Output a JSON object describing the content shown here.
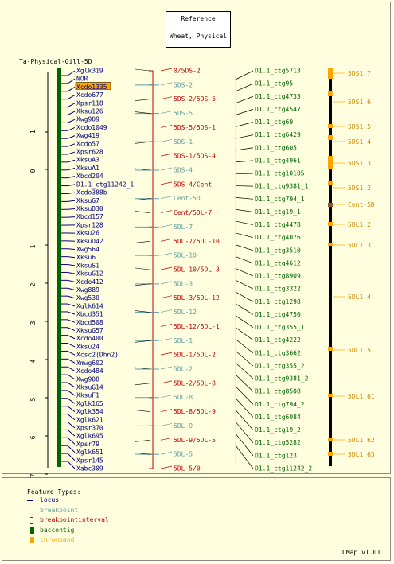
{
  "reference": {
    "title": "Reference",
    "subtitle": "Wheat, Physical"
  },
  "map1": {
    "name": "Ta-Physical-Gill-5D",
    "axis_ticks": [
      "-1",
      "0",
      "1",
      "2",
      "3",
      "4",
      "5",
      "6",
      "7"
    ],
    "loci": [
      "Xglk319",
      "NOR",
      "Xcdo1335",
      "Xcdo677",
      "Xpsr118",
      "Xksu126",
      "Xwg909",
      "Xcdo1049",
      "Xwg419",
      "Xcdo57",
      "Xpsr628",
      "XksuA3",
      "XksuA1",
      "Xbcd204",
      "D1.1_ctg11242_1",
      "Xcdo388b",
      "XksuG7",
      "XksuD30",
      "Xbcd157",
      "Xpsr128",
      "Xksu26",
      "XksuD42",
      "Xwg564",
      "Xksu6",
      "XksuS1",
      "XksuG12",
      "Xcdo412",
      "Xwg889",
      "Xwg530",
      "Xglk614",
      "Xbcd351",
      "Xbcd508",
      "XksuG57",
      "Xcdo400",
      "Xksu24",
      "Xcsc2(Dhn2)",
      "Xmwg602",
      "Xcdo484",
      "Xwg908",
      "XksuG14",
      "XksuF1",
      "Xglk165",
      "Xglk354",
      "Xglk621",
      "Xpsr370",
      "Xglk695",
      "Xpsr79",
      "Xglk651",
      "Xpsr145",
      "Xabc309"
    ],
    "highlighted_locus": "Xcdo1335"
  },
  "map2": {
    "labels": [
      {
        "text": "0/5DS-2",
        "kind": "interval"
      },
      {
        "text": "5DS-2",
        "kind": "point"
      },
      {
        "text": "5DS-2/5DS-5",
        "kind": "interval"
      },
      {
        "text": "5DS-5",
        "kind": "point"
      },
      {
        "text": "5DS-5/5DS-1",
        "kind": "interval"
      },
      {
        "text": "5DS-1",
        "kind": "point"
      },
      {
        "text": "5DS-1/5DS-4",
        "kind": "interval"
      },
      {
        "text": "5DS-4",
        "kind": "point"
      },
      {
        "text": "5DS-4/Cent",
        "kind": "interval"
      },
      {
        "text": "Cent-5D",
        "kind": "point"
      },
      {
        "text": "Cent/5DL-7",
        "kind": "interval"
      },
      {
        "text": "5DL-7",
        "kind": "point"
      },
      {
        "text": "5DL-7/5DL-10",
        "kind": "interval"
      },
      {
        "text": "5DL-10",
        "kind": "point"
      },
      {
        "text": "5DL-10/5DL-3",
        "kind": "interval"
      },
      {
        "text": "5DL-3",
        "kind": "point"
      },
      {
        "text": "5DL-3/5DL-12",
        "kind": "interval"
      },
      {
        "text": "5DL-12",
        "kind": "point"
      },
      {
        "text": "5DL-12/5DL-1",
        "kind": "interval"
      },
      {
        "text": "5DL-1",
        "kind": "point"
      },
      {
        "text": "5DL-1/5DL-2",
        "kind": "interval"
      },
      {
        "text": "5DL-2",
        "kind": "point"
      },
      {
        "text": "5DL-2/5DL-8",
        "kind": "interval"
      },
      {
        "text": "5DL-8",
        "kind": "point"
      },
      {
        "text": "5DL-8/5DL-9",
        "kind": "interval"
      },
      {
        "text": "5DL-9",
        "kind": "point"
      },
      {
        "text": "5DL-9/5DL-5",
        "kind": "interval"
      },
      {
        "text": "5DL-5",
        "kind": "point"
      },
      {
        "text": "5DL-5/0",
        "kind": "interval"
      }
    ]
  },
  "map3": {
    "contigs": [
      "D1.1_ctg5713",
      "D1.1_ctg95",
      "D1.1_ctg4733",
      "D1.1_ctg4547",
      "D1.1_ctg69",
      "D1.1_ctg6429",
      "D1.1_ctg605",
      "D1.1_ctg4961",
      "D1.1_ctg10105",
      "D1.1_ctg9381_1",
      "D1.1_ctg794_1",
      "D1.1_ctg19_1",
      "D1.1_ctg4478",
      "D1.1_ctg4076",
      "D1.1_ctg3510",
      "D1.1_ctg4612",
      "D1.1_ctg8909",
      "D1.1_ctg3322",
      "D1.1_ctg1298",
      "D1.1_ctg4750",
      "D1.1_ctg355_1",
      "D1.1_ctg4222",
      "D1.1_ctg3662",
      "D1.1_ctg355_2",
      "D1.1_ctg9381_2",
      "D1.1_ctg8508",
      "D1.1_ctg794_2",
      "D1.1_ctg6084",
      "D1.1_ctg19_2",
      "D1.1_ctg5282",
      "D1.1_ctg123",
      "D1.1_ctg11242_2"
    ]
  },
  "map4": {
    "bands": [
      "5DS1.7",
      "5DS1.6",
      "5DS1.5",
      "5DS1.4",
      "5DS1.3",
      "5DS1.2",
      "Cent-5D",
      "5DL1.2",
      "5DL1.3",
      "5DL1.4",
      "5DL1.5",
      "5DL1.61",
      "5DL1.62",
      "5DL1.63"
    ]
  },
  "legend": {
    "title": "Feature Types:",
    "items": [
      {
        "label": "locus",
        "color": "#000080",
        "shape": "line"
      },
      {
        "label": "breakpoint",
        "color": "#5f9ea0",
        "shape": "line"
      },
      {
        "label": "breakpointinterval",
        "color": "#c00000",
        "shape": "bracket"
      },
      {
        "label": "baccontig",
        "color": "#006400",
        "shape": "box"
      },
      {
        "label": "chromband",
        "color": "#ffa500",
        "shape": "box"
      }
    ]
  },
  "footer": "CMap v1.01",
  "colors": {
    "background": "#ffffe0",
    "locus": "#000080",
    "breakpoint": "#5f9ea0",
    "interval": "#c00000",
    "contig": "#006400",
    "band": "#ffa500",
    "band_text": "#cc8800",
    "centromere": "#8b5a2b",
    "highlight": "#ffa500"
  }
}
